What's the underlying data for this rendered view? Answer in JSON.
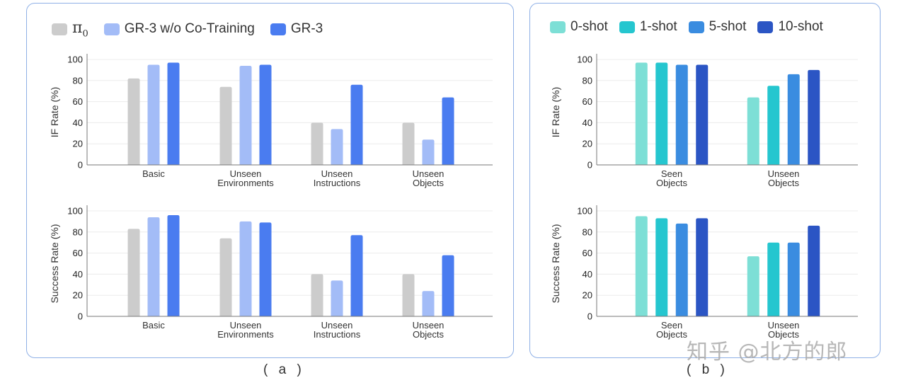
{
  "captions": {
    "a": "( a )",
    "b": "( b )"
  },
  "watermark": "知乎 @北方的郎",
  "legend_a": [
    {
      "label_symbol": "π",
      "label_sub": "0",
      "color": "#cccccc"
    },
    {
      "label": "GR-3 w/o Co-Training",
      "color": "#a3bcf7"
    },
    {
      "label": "GR-3",
      "color": "#4a7cf0"
    }
  ],
  "legend_b": [
    {
      "label": "0-shot",
      "color": "#7ddfd6"
    },
    {
      "label": "1-shot",
      "color": "#25c6cf"
    },
    {
      "label": "5-shot",
      "color": "#3a8ce0"
    },
    {
      "label": "10-shot",
      "color": "#2b55c4"
    }
  ],
  "chart_data": [
    {
      "id": "a-if",
      "panel": "a",
      "type": "bar",
      "ylabel": "IF Rate (%)",
      "ylim": [
        0,
        100
      ],
      "yticks": [
        0,
        20,
        40,
        60,
        80,
        100
      ],
      "categories": [
        [
          "Basic"
        ],
        [
          "Unseen",
          "Environments"
        ],
        [
          "Unseen",
          "Instructions"
        ],
        [
          "Unseen",
          "Objects"
        ]
      ],
      "series": [
        {
          "name": "π0",
          "values": [
            82,
            74,
            40,
            40
          ]
        },
        {
          "name": "GR-3 w/o Co-Training",
          "values": [
            95,
            94,
            34,
            24
          ]
        },
        {
          "name": "GR-3",
          "values": [
            97,
            95,
            76,
            64
          ]
        }
      ]
    },
    {
      "id": "a-sr",
      "panel": "a",
      "type": "bar",
      "ylabel": "Success Rate (%)",
      "ylim": [
        0,
        100
      ],
      "yticks": [
        0,
        20,
        40,
        60,
        80,
        100
      ],
      "categories": [
        [
          "Basic"
        ],
        [
          "Unseen",
          "Environments"
        ],
        [
          "Unseen",
          "Instructions"
        ],
        [
          "Unseen",
          "Objects"
        ]
      ],
      "series": [
        {
          "name": "π0",
          "values": [
            83,
            74,
            40,
            40
          ]
        },
        {
          "name": "GR-3 w/o Co-Training",
          "values": [
            94,
            90,
            34,
            24
          ]
        },
        {
          "name": "GR-3",
          "values": [
            96,
            89,
            77,
            58
          ]
        }
      ]
    },
    {
      "id": "b-if",
      "panel": "b",
      "type": "bar",
      "ylabel": "IF Rate (%)",
      "ylim": [
        0,
        100
      ],
      "yticks": [
        0,
        20,
        40,
        60,
        80,
        100
      ],
      "categories": [
        [
          "Seen",
          "Objects"
        ],
        [
          "Unseen",
          "Objects"
        ]
      ],
      "series": [
        {
          "name": "0-shot",
          "values": [
            97,
            64
          ]
        },
        {
          "name": "1-shot",
          "values": [
            97,
            75
          ]
        },
        {
          "name": "5-shot",
          "values": [
            95,
            86
          ]
        },
        {
          "name": "10-shot",
          "values": [
            95,
            90
          ]
        }
      ]
    },
    {
      "id": "b-sr",
      "panel": "b",
      "type": "bar",
      "ylabel": "Success Rate (%)",
      "ylim": [
        0,
        100
      ],
      "yticks": [
        0,
        20,
        40,
        60,
        80,
        100
      ],
      "categories": [
        [
          "Seen",
          "Objects"
        ],
        [
          "Unseen",
          "Objects"
        ]
      ],
      "series": [
        {
          "name": "0-shot",
          "values": [
            95,
            57
          ]
        },
        {
          "name": "1-shot",
          "values": [
            93,
            70
          ]
        },
        {
          "name": "5-shot",
          "values": [
            88,
            70
          ]
        },
        {
          "name": "10-shot",
          "values": [
            93,
            86
          ]
        }
      ]
    }
  ]
}
